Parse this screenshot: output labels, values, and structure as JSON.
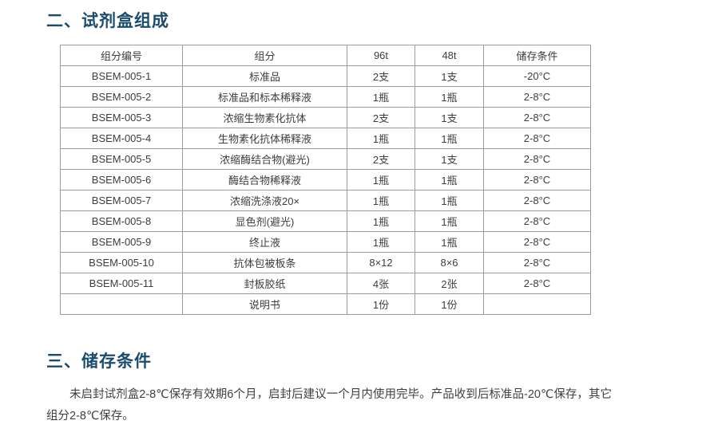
{
  "colors": {
    "heading": "#1b4c6e",
    "table_border": "#9b9b9b",
    "body_text": "#3f3f3f",
    "background": "#ffffff"
  },
  "section2": {
    "title": "二、试剂盒组成",
    "table": {
      "headers": [
        "组分编号",
        "组分",
        "96t",
        "48t",
        "储存条件"
      ],
      "rows": [
        [
          "BSEM-005-1",
          "标准品",
          "2支",
          "1支",
          "-20°C"
        ],
        [
          "BSEM-005-2",
          "标准品和标本稀释液",
          "1瓶",
          "1瓶",
          "2-8°C"
        ],
        [
          "BSEM-005-3",
          "浓缩生物素化抗体",
          "2支",
          "1支",
          "2-8°C"
        ],
        [
          "BSEM-005-4",
          "生物素化抗体稀释液",
          "1瓶",
          "1瓶",
          "2-8°C"
        ],
        [
          "BSEM-005-5",
          "浓缩酶结合物(避光)",
          "2支",
          "1支",
          "2-8°C"
        ],
        [
          "BSEM-005-6",
          "酶结合物稀释液",
          "1瓶",
          "1瓶",
          "2-8°C"
        ],
        [
          "BSEM-005-7",
          "浓缩洗涤液20×",
          "1瓶",
          "1瓶",
          "2-8°C"
        ],
        [
          "BSEM-005-8",
          "显色剂(避光)",
          "1瓶",
          "1瓶",
          "2-8°C"
        ],
        [
          "BSEM-005-9",
          "终止液",
          "1瓶",
          "1瓶",
          "2-8°C"
        ],
        [
          "BSEM-005-10",
          "抗体包被板条",
          "8×12",
          "8×6",
          "2-8°C"
        ],
        [
          "BSEM-005-11",
          "封板胶纸",
          "4张",
          "2张",
          "2-8°C"
        ],
        [
          "",
          "说明书",
          "1份",
          "1份",
          ""
        ]
      ]
    }
  },
  "section3": {
    "title": "三、储存条件",
    "paragraph": "未启封试剂盒2-8℃保存有效期6个月，启封后建议一个月内使用完毕。产品收到后标准品-20℃保存，其它组分2-8℃保存。"
  }
}
